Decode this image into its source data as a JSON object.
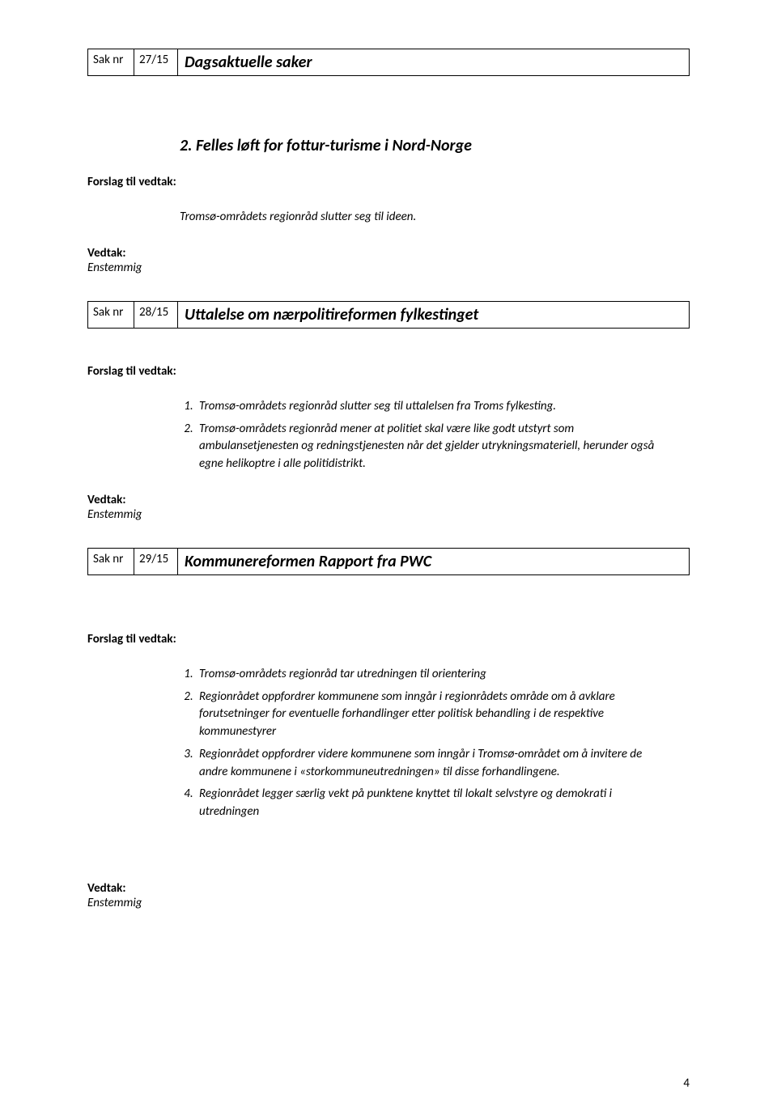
{
  "sak27": {
    "sak_label": "Sak nr",
    "num": "27/15",
    "title": "Dagsaktuelle saker",
    "sub_heading": "2. Felles løft for fottur-turisme i Nord-Norge",
    "forslag_label": "Forslag til vedtak:",
    "body": "Tromsø-områdets regionråd slutter seg til ideen.",
    "vedtak_label": "Vedtak:",
    "vedtak_value": "Enstemmig"
  },
  "sak28": {
    "sak_label": "Sak nr",
    "num": "28/15",
    "title": "Uttalelse om nærpolitireformen fylkestinget",
    "forslag_label": "Forslag til vedtak:",
    "items": [
      "Tromsø-områdets regionråd slutter seg til uttalelsen fra Troms fylkesting.",
      "Tromsø-områdets regionråd mener at politiet skal være like godt utstyrt som ambulansetjenesten og redningstjenesten når det gjelder utrykningsmateriell, herunder også egne helikoptre i alle politidistrikt."
    ],
    "vedtak_label": "Vedtak:",
    "vedtak_value": "Enstemmig"
  },
  "sak29": {
    "sak_label": "Sak nr",
    "num": "29/15",
    "title": "Kommunereformen Rapport fra PWC",
    "forslag_label": "Forslag til vedtak:",
    "items": [
      "Tromsø-områdets regionråd tar utredningen til orientering",
      "Regionrådet oppfordrer kommunene som inngår i regionrådets område om å avklare forutsetninger for eventuelle forhandlinger etter politisk behandling i de respektive kommunestyrer",
      "Regionrådet oppfordrer videre kommunene som inngår i Tromsø-området om å invitere de andre kommunene i «storkommuneutredningen» til disse forhandlingene.",
      "Regionrådet legger særlig vekt på punktene knyttet til lokalt selvstyre og demokrati i utredningen"
    ],
    "vedtak_label": "Vedtak:",
    "vedtak_value": "Enstemmig"
  },
  "page_number": "4"
}
